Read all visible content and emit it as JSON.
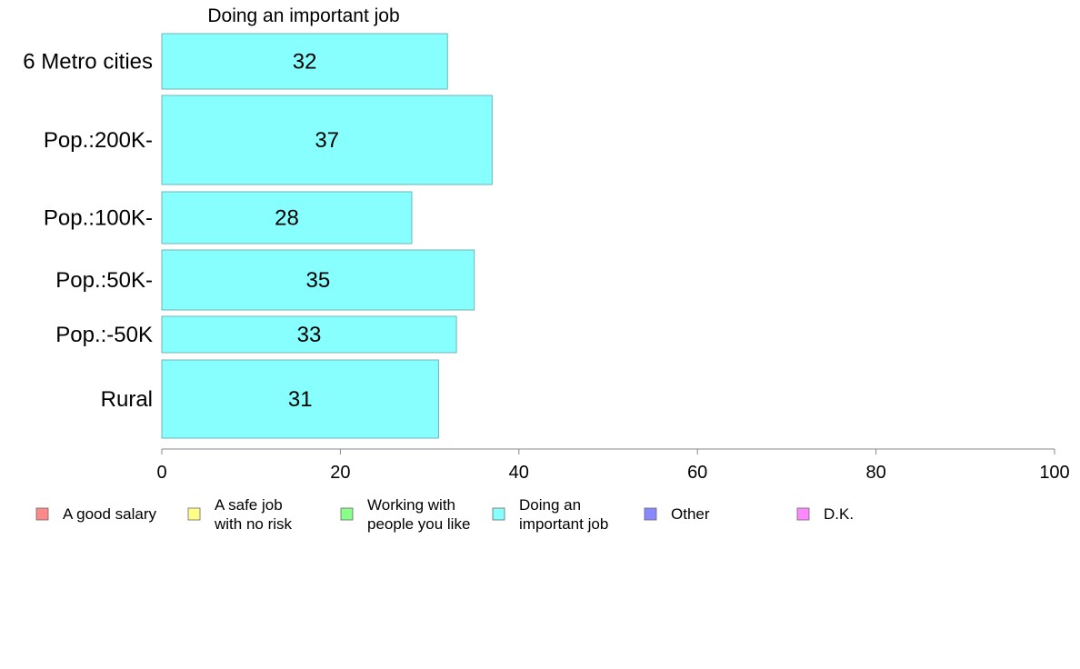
{
  "chart_data": {
    "type": "bar",
    "orientation": "horizontal",
    "title": "Doing an important job",
    "categories": [
      "6 Metro cities",
      "Pop.:200K-",
      "Pop.:100K-",
      "Pop.:50K-",
      "Pop.:-50K",
      "Rural"
    ],
    "values": [
      32,
      37,
      28,
      35,
      33,
      31
    ],
    "xlim": [
      0,
      100
    ],
    "xticks": [
      0,
      20,
      40,
      60,
      80,
      100
    ],
    "xlabel": "",
    "ylabel": "",
    "bar_color": "#88ffff",
    "grid": false,
    "legend_placement": "bottom",
    "legend": [
      {
        "lines": [
          "A good salary"
        ],
        "color": "#ff8888"
      },
      {
        "lines": [
          "A safe job",
          "with no risk"
        ],
        "color": "#ffff88"
      },
      {
        "lines": [
          "Working with",
          "people you like"
        ],
        "color": "#88ff88"
      },
      {
        "lines": [
          "Doing an",
          "important job"
        ],
        "color": "#88ffff"
      },
      {
        "lines": [
          "Other"
        ],
        "color": "#8888ff"
      },
      {
        "lines": [
          "D.K."
        ],
        "color": "#ff88ff"
      }
    ]
  }
}
